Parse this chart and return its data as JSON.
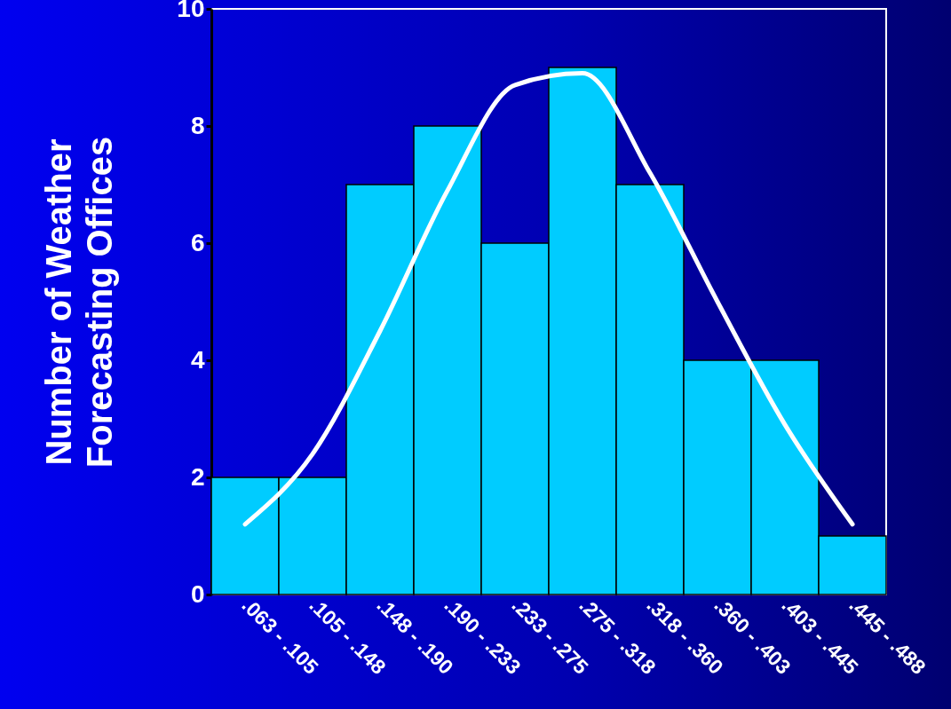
{
  "chart_data": {
    "type": "bar",
    "ylabel": "Number of Weather Forecasting Offices",
    "categories": [
      ".063 - .105",
      ".105 - .148",
      ".148 - .190",
      ".190 - .233",
      ".233 - .275",
      ".275 - .318",
      ".318 - .360",
      ".360 - .403",
      ".403 - .445",
      ".445 - .488"
    ],
    "series": [
      {
        "color": "#00ccff",
        "values": [
          2,
          2,
          7,
          8,
          6,
          9,
          7,
          4,
          4,
          1
        ]
      },
      {
        "type": "line",
        "color": "#ffffff",
        "values": [
          1.2,
          2.4,
          4.5,
          6.9,
          8.7,
          8.9,
          7.2,
          5.0,
          2.9,
          1.2
        ]
      }
    ],
    "ylim": [
      0,
      10
    ],
    "yticks": [
      0,
      2,
      4,
      6,
      8,
      10
    ],
    "grid": false,
    "marker": "none"
  }
}
